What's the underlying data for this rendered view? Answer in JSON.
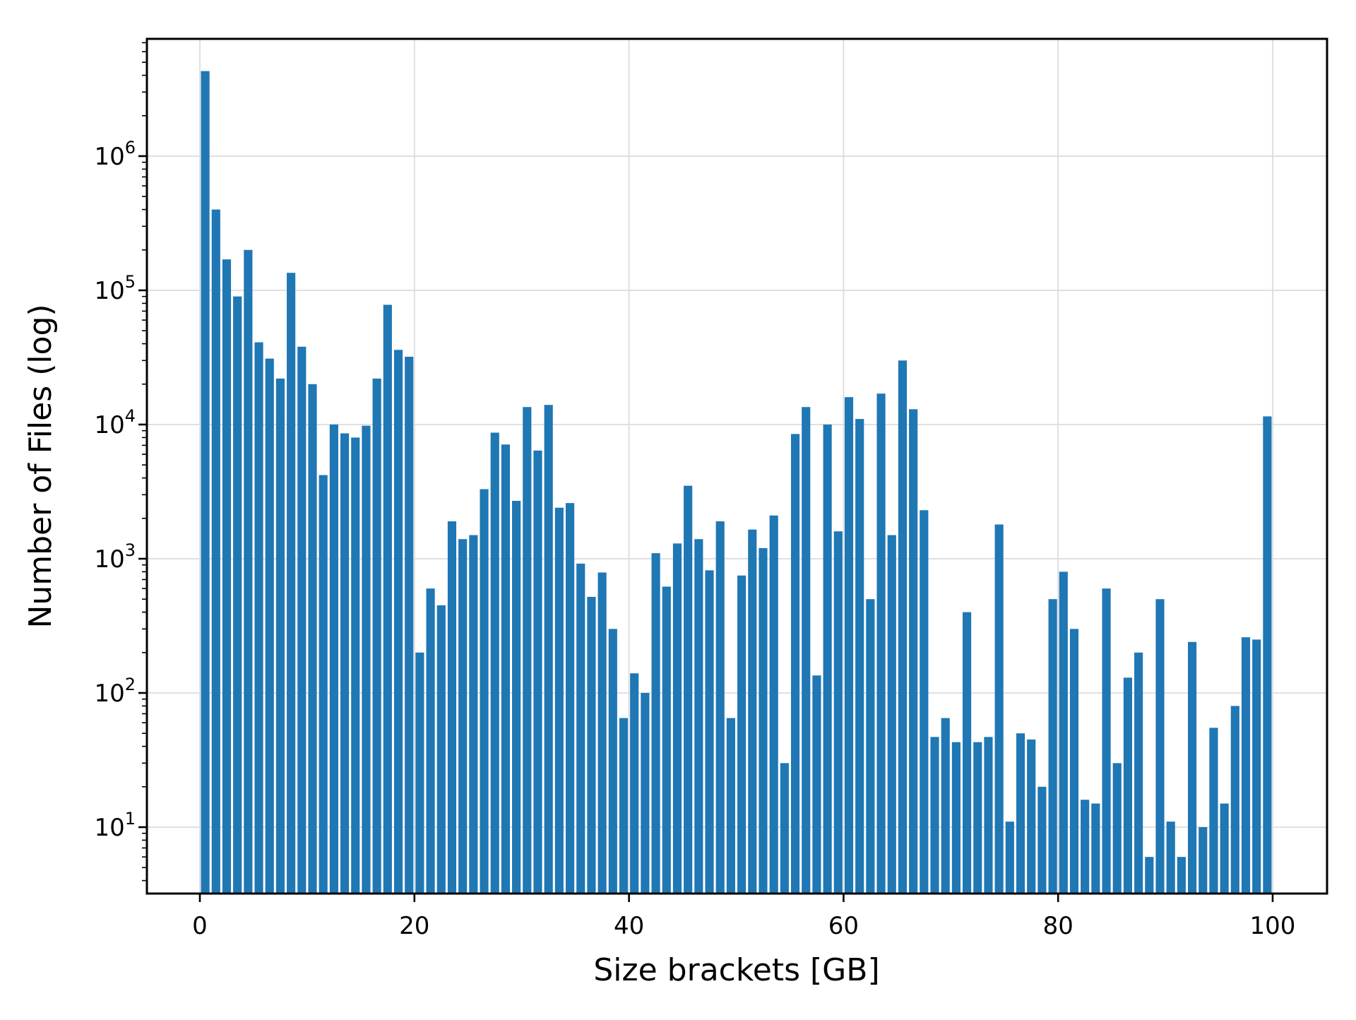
{
  "figure": {
    "background": "#ffffff"
  },
  "chart_data": {
    "type": "bar",
    "title": "",
    "xlabel": "Size brackets [GB]",
    "ylabel": "Number of Files (log)",
    "yscale": "log",
    "grid": true,
    "legend": null,
    "bar_color": "#1f77b4",
    "grid_color": "#dcdcdc",
    "axis_color": "#000000",
    "x_ticks": [
      0,
      20,
      40,
      60,
      80,
      100
    ],
    "y_tick_exponents": [
      1,
      2,
      3,
      4,
      5,
      6
    ],
    "xlim": [
      -5,
      105
    ],
    "ylim": [
      3.2,
      7500000
    ],
    "bin_width_gb": 1,
    "bin_starts": [
      0,
      1,
      2,
      3,
      4,
      5,
      6,
      7,
      8,
      9,
      10,
      11,
      12,
      13,
      14,
      15,
      16,
      17,
      18,
      19,
      20,
      21,
      22,
      23,
      24,
      25,
      26,
      27,
      28,
      29,
      30,
      31,
      32,
      33,
      34,
      35,
      36,
      37,
      38,
      39,
      40,
      41,
      42,
      43,
      44,
      45,
      46,
      47,
      48,
      49,
      50,
      51,
      52,
      53,
      54,
      55,
      56,
      57,
      58,
      59,
      60,
      61,
      62,
      63,
      64,
      65,
      66,
      67,
      68,
      69,
      70,
      71,
      72,
      73,
      74,
      75,
      76,
      77,
      78,
      79,
      80,
      81,
      82,
      83,
      84,
      85,
      86,
      87,
      88,
      89,
      90,
      91,
      92,
      93,
      94,
      95,
      96,
      97,
      98,
      99
    ],
    "values": [
      4300000,
      400000,
      170000,
      90000,
      200000,
      41000,
      31000,
      22000,
      135000,
      38000,
      20000,
      4200,
      10000,
      8600,
      8000,
      9800,
      22000,
      78000,
      36000,
      32000,
      200,
      600,
      450,
      1900,
      1400,
      1500,
      3300,
      8700,
      7100,
      2700,
      13500,
      6400,
      14000,
      2400,
      2600,
      920,
      520,
      790,
      300,
      65,
      140,
      100,
      1100,
      620,
      1300,
      3500,
      1400,
      820,
      1900,
      65,
      750,
      1650,
      1200,
      2100,
      30,
      8500,
      13500,
      135,
      10000,
      1600,
      16000,
      11000,
      500,
      17000,
      1500,
      30000,
      13000,
      2300,
      47,
      65,
      43,
      400,
      43,
      47,
      1800,
      11,
      50,
      45,
      20,
      500,
      800,
      300,
      16,
      15,
      600,
      30,
      130,
      200,
      6,
      500,
      11,
      6,
      240,
      10,
      55,
      15,
      80,
      260,
      250,
      11500
    ]
  }
}
